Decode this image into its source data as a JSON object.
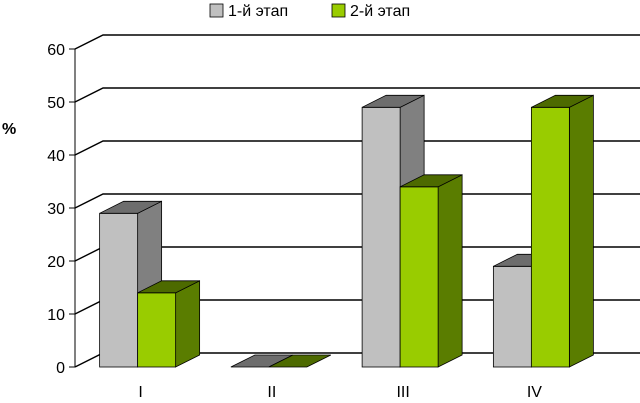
{
  "chart_data": {
    "type": "bar",
    "style": "3d-clustered-column",
    "categories": [
      "I",
      "II",
      "III",
      "IV"
    ],
    "series": [
      {
        "name": "1-й этап",
        "values": [
          29,
          0,
          49,
          19
        ],
        "color": "#c0c0c0",
        "side_color": "#808080"
      },
      {
        "name": "2-й этап",
        "values": [
          14,
          0,
          34,
          49
        ],
        "color": "#99cc00",
        "side_color": "#5a7d00"
      }
    ],
    "ylabel": "%",
    "ylim": [
      0,
      60
    ],
    "yticks": [
      0,
      10,
      20,
      30,
      40,
      50,
      60
    ],
    "grid": true,
    "legend_position": "top"
  }
}
